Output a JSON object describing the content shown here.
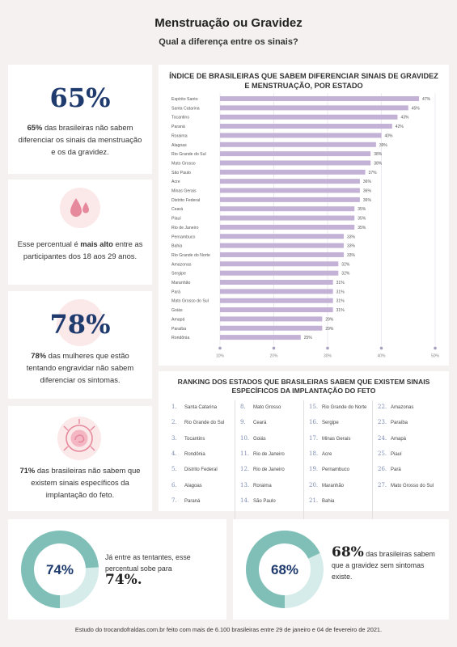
{
  "header": {
    "title": "Menstruação ou Gravidez",
    "subtitle": "Qual a diferença entre os sinais?"
  },
  "cards": [
    {
      "big": "65%",
      "bold": "65%",
      "text": " das brasileiras não sabem diferenciar os sinais da menstruação e os da gravidez."
    },
    {
      "pre": "Esse percentual é ",
      "bold": "mais alto",
      "text": " entre as participantes dos 18 aos 29 anos."
    },
    {
      "big": "78%",
      "bold": "78%",
      "text": " das mulheres que estão tentando engravidar não sabem diferenciar os sintomas."
    },
    {
      "bold": "71%",
      "text": " das brasileiras não sabem que existem sinais específicos da implantação do feto."
    }
  ],
  "chart_data": {
    "type": "bar",
    "orientation": "horizontal",
    "title": "ÍNDICE DE BRASILEIRAS QUE SABEM DIFERENCIAR SINAIS DE GRAVIDEZ E MENSTRUAÇÃO, POR ESTADO",
    "categories": [
      "Espírito Santo",
      "Santa Catarina",
      "Tocantins",
      "Paraná",
      "Roraima",
      "Alagoas",
      "Rio Grande do Sul",
      "Mato Grosso",
      "São Paulo",
      "Acre",
      "Minas Gerais",
      "Distrito Federal",
      "Ceará",
      "Piauí",
      "Rio de Janeiro",
      "Pernambuco",
      "Bahia",
      "Rio Grande do Norte",
      "Amazonas",
      "Sergipe",
      "Maranhão",
      "Pará",
      "Mato Grosso do Sul",
      "Goiás",
      "Amapá",
      "Paraíba",
      "Rondônia"
    ],
    "values": [
      47,
      45,
      43,
      42,
      40,
      39,
      38,
      38,
      37,
      36,
      36,
      36,
      35,
      35,
      35,
      33,
      33,
      33,
      32,
      32,
      31,
      31,
      31,
      31,
      29,
      29,
      25
    ],
    "value_labels": [
      "47%",
      "45%",
      "43%",
      "42%",
      "40%",
      "39%",
      "38%",
      "38%",
      "37%",
      "36%",
      "36%",
      "36%",
      "35%",
      "35%",
      "35%",
      "33%",
      "33%",
      "33%",
      "32%",
      "32%",
      "31%",
      "31%",
      "31%",
      "31%",
      "29%",
      "29%",
      "25%"
    ],
    "xticks": [
      "10%",
      "20%",
      "30%",
      "40%",
      "50%"
    ],
    "xlim": [
      10,
      50
    ],
    "bar_color": "#c3b1d6",
    "grid": true
  },
  "ranking": {
    "title": "RANKING DOS ESTADOS QUE BRASILEIRAS SABEM QUE EXISTEM SINAIS ESPECÍFICOS DA IMPLANTAÇÃO DO FETO",
    "items": [
      {
        "n": "1.",
        "name": "Santa Catarina"
      },
      {
        "n": "2.",
        "name": "Rio Grande do Sul"
      },
      {
        "n": "3.",
        "name": "Tocantins"
      },
      {
        "n": "4.",
        "name": "Rondônia"
      },
      {
        "n": "5.",
        "name": "Distrito Federal"
      },
      {
        "n": "6.",
        "name": "Alagoas"
      },
      {
        "n": "7.",
        "name": "Paraná"
      },
      {
        "n": "8.",
        "name": "Mato Grosso"
      },
      {
        "n": "9.",
        "name": "Ceará"
      },
      {
        "n": "10.",
        "name": "Goiás"
      },
      {
        "n": "11.",
        "name": "Rio de Janeiro"
      },
      {
        "n": "12.",
        "name": "Rio de Janeiro"
      },
      {
        "n": "13.",
        "name": "Roraima"
      },
      {
        "n": "14.",
        "name": "São Paulo"
      },
      {
        "n": "15.",
        "name": "Rio Grande do Norte"
      },
      {
        "n": "16.",
        "name": "Sergipe"
      },
      {
        "n": "17.",
        "name": "Minas Gerais"
      },
      {
        "n": "18.",
        "name": "Acre"
      },
      {
        "n": "19.",
        "name": "Pernambuco"
      },
      {
        "n": "20.",
        "name": "Maranhão"
      },
      {
        "n": "21.",
        "name": "Bahia"
      },
      {
        "n": "22.",
        "name": "Amazonas"
      },
      {
        "n": "23.",
        "name": "Paraíba"
      },
      {
        "n": "24.",
        "name": "Amapá"
      },
      {
        "n": "25.",
        "name": "Piauí"
      },
      {
        "n": "26.",
        "name": "Pará"
      },
      {
        "n": "27.",
        "name": "Mato Grosso do Sul"
      }
    ]
  },
  "donuts": [
    {
      "label": "74%",
      "value": 74,
      "text": "Já entre as tentantes, esse percentual sobe para",
      "big": "74%."
    },
    {
      "label": "68%",
      "value": 68,
      "big": "68%",
      "text": " das brasileiras sabem que a gravidez sem sintomas existe."
    }
  ],
  "footer": "Estudo do trocandofraldas.com.br feito com mais de 6.100 brasileiras entre 29 de janeiro e 04 de fevereiro de 2021.",
  "colors": {
    "navy": "#1f3b6e",
    "teal": "#7fbfb8",
    "teal_light": "#d6ecea",
    "pink": "#e6899c",
    "pink_bg": "#fbe8e8",
    "bar": "#c3b1d6"
  },
  "icons": [
    "droplets-icon",
    "embryo-icon"
  ]
}
